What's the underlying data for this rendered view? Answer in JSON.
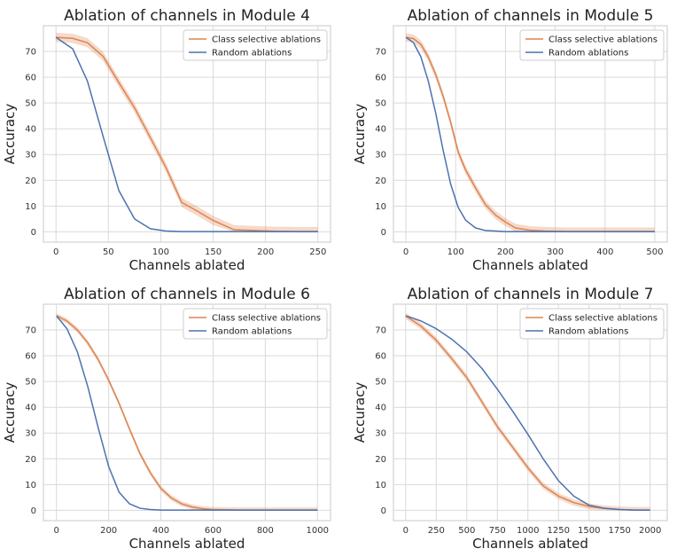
{
  "chart_data": [
    {
      "type": "line",
      "title": "Ablation of channels in Module 4",
      "xlabel": "Channels ablated",
      "ylabel": "Accuracy",
      "xlim": [
        -12,
        262
      ],
      "ylim": [
        -4,
        80
      ],
      "xticks": [
        0,
        50,
        100,
        150,
        200,
        250
      ],
      "yticks": [
        0,
        10,
        20,
        30,
        40,
        50,
        60,
        70
      ],
      "grid": true,
      "legend": "top-right",
      "series": [
        {
          "name": "Class selective ablations",
          "color": "#dd8452",
          "band": 1.8,
          "x": [
            0,
            16,
            30,
            45,
            60,
            75,
            90,
            105,
            120,
            135,
            150,
            170,
            190,
            210,
            230,
            250
          ],
          "y": [
            75.5,
            75.1,
            73.4,
            68.1,
            57.9,
            48.1,
            36.6,
            24.9,
            11.4,
            8.0,
            4.4,
            0.8,
            0.5,
            0.2,
            0.1,
            0.1
          ]
        },
        {
          "name": "Random ablations",
          "color": "#4c72b0",
          "x": [
            0,
            16,
            30,
            45,
            60,
            75,
            90,
            105,
            120,
            150,
            180,
            210,
            230,
            250
          ],
          "y": [
            75.5,
            71.0,
            58.5,
            37.0,
            16.0,
            5.0,
            1.2,
            0.3,
            0.1,
            0.1,
            0.1,
            0.1,
            0.1,
            0.1
          ]
        }
      ]
    },
    {
      "type": "line",
      "title": "Ablation of channels in Module 5",
      "xlabel": "Channels ablated",
      "ylabel": "Accuracy",
      "xlim": [
        -25,
        525
      ],
      "ylim": [
        -4,
        80
      ],
      "xticks": [
        0,
        100,
        200,
        300,
        400,
        500
      ],
      "yticks": [
        0,
        10,
        20,
        30,
        40,
        50,
        60,
        70
      ],
      "grid": true,
      "legend": "top-right",
      "series": [
        {
          "name": "Class selective ablations",
          "color": "#dd8452",
          "band": 1.6,
          "x": [
            0,
            15,
            30,
            45,
            60,
            75,
            90,
            105,
            120,
            140,
            160,
            180,
            200,
            220,
            250,
            280,
            320,
            400,
            500
          ],
          "y": [
            75.5,
            75.0,
            72.8,
            67.8,
            61.0,
            52.5,
            42.5,
            31.0,
            24.0,
            17.0,
            10.5,
            6.5,
            3.8,
            1.5,
            0.6,
            0.3,
            0.1,
            0.1,
            0.1
          ]
        },
        {
          "name": "Random ablations",
          "color": "#4c72b0",
          "x": [
            0,
            15,
            30,
            45,
            60,
            75,
            90,
            105,
            120,
            140,
            160,
            200,
            300,
            400,
            500
          ],
          "y": [
            75.5,
            73.5,
            68.0,
            58.5,
            46.0,
            31.5,
            18.5,
            9.5,
            4.5,
            1.5,
            0.5,
            0.1,
            0.1,
            0.1,
            0.1
          ]
        }
      ]
    },
    {
      "type": "line",
      "title": "Ablation of channels in Module 6",
      "xlabel": "Channels ablated",
      "ylabel": "Accuracy",
      "xlim": [
        -50,
        1050
      ],
      "ylim": [
        -4,
        80
      ],
      "xticks": [
        0,
        200,
        400,
        600,
        800,
        1000
      ],
      "yticks": [
        0,
        10,
        20,
        30,
        40,
        50,
        60,
        70
      ],
      "grid": true,
      "legend": "top-right",
      "series": [
        {
          "name": "Class selective ablations",
          "color": "#dd8452",
          "band": 1.0,
          "x": [
            0,
            40,
            80,
            120,
            160,
            200,
            240,
            280,
            320,
            360,
            400,
            440,
            480,
            520,
            560,
            600,
            700,
            800,
            1000
          ],
          "y": [
            75.5,
            73.5,
            70.0,
            65.0,
            58.5,
            50.5,
            41.5,
            31.5,
            22.0,
            14.5,
            8.5,
            4.8,
            2.5,
            1.3,
            0.6,
            0.3,
            0.1,
            0.1,
            0.1
          ]
        },
        {
          "name": "Random ablations",
          "color": "#4c72b0",
          "x": [
            0,
            40,
            80,
            120,
            160,
            200,
            240,
            280,
            320,
            360,
            400,
            500,
            600,
            800,
            1000
          ],
          "y": [
            75.5,
            70.5,
            61.5,
            48.0,
            32.0,
            17.0,
            7.0,
            2.5,
            0.8,
            0.3,
            0.1,
            0.1,
            0.1,
            0.1,
            0.1
          ]
        }
      ]
    },
    {
      "type": "line",
      "title": "Ablation of channels in Module 7",
      "xlabel": "Channels ablated",
      "ylabel": "Accuracy",
      "xlim": [
        -100,
        2140
      ],
      "ylim": [
        -4,
        80
      ],
      "xticks": [
        0,
        250,
        500,
        750,
        1000,
        1250,
        1500,
        1750,
        2000
      ],
      "yticks": [
        0,
        10,
        20,
        30,
        40,
        50,
        60,
        70
      ],
      "grid": true,
      "legend": "top-right",
      "series": [
        {
          "name": "Class selective ablations",
          "color": "#dd8452",
          "band": 1.2,
          "x": [
            0,
            125,
            250,
            375,
            500,
            625,
            750,
            875,
            1000,
            1125,
            1250,
            1375,
            1500,
            1625,
            1750,
            1875,
            2000
          ],
          "y": [
            75.5,
            71.5,
            66.0,
            59.0,
            51.5,
            42.0,
            32.5,
            24.5,
            16.5,
            9.5,
            5.5,
            3.0,
            1.5,
            0.7,
            0.3,
            0.1,
            0.1
          ]
        },
        {
          "name": "Random ablations",
          "color": "#4c72b0",
          "x": [
            0,
            125,
            250,
            375,
            500,
            625,
            750,
            875,
            1000,
            1125,
            1250,
            1375,
            1500,
            1625,
            1750,
            1875,
            2000
          ],
          "y": [
            75.5,
            73.5,
            70.5,
            66.5,
            61.5,
            55.0,
            47.0,
            38.5,
            29.5,
            20.0,
            11.5,
            5.5,
            2.0,
            0.8,
            0.3,
            0.1,
            0.1
          ]
        }
      ]
    }
  ]
}
